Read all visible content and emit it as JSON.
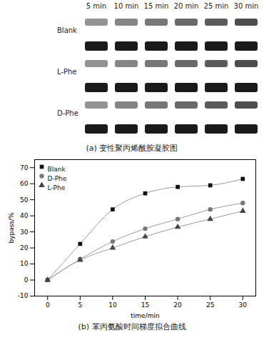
{
  "gel": {
    "lanes": [
      "5 min",
      "10 min",
      "15 min",
      "20 min",
      "25 min",
      "30 min"
    ],
    "rows": [
      "Blank",
      "L-Phe",
      "D-Phe"
    ],
    "caption": "(a) 变性聚丙烯酰胺凝胶图"
  },
  "chart_data": {
    "type": "line",
    "caption": "(b) 苯丙氨酸时间梯度拟合曲线",
    "x_label": "time/min",
    "y_label": "bypass/%",
    "xlim": [
      -2,
      32
    ],
    "ylim": [
      -10,
      75
    ],
    "xticks": [
      0,
      5,
      10,
      15,
      20,
      25,
      30
    ],
    "yticks": [
      -10,
      0,
      10,
      20,
      30,
      40,
      50,
      60,
      70
    ],
    "legend": "top-left",
    "x": [
      0,
      5,
      10,
      15,
      20,
      25,
      30
    ],
    "series": [
      {
        "name": "Blank",
        "color": "#111111",
        "marker": "square",
        "values": [
          0,
          22.5,
          44,
          54,
          58,
          59,
          63
        ]
      },
      {
        "name": "D-Phe",
        "color": "#777777",
        "marker": "circle",
        "values": [
          0,
          13,
          24,
          32,
          38,
          44,
          48
        ]
      },
      {
        "name": "L-Phe",
        "color": "#444444",
        "marker": "triangle",
        "values": [
          0,
          12.5,
          20,
          27,
          33,
          38,
          43
        ]
      }
    ]
  }
}
